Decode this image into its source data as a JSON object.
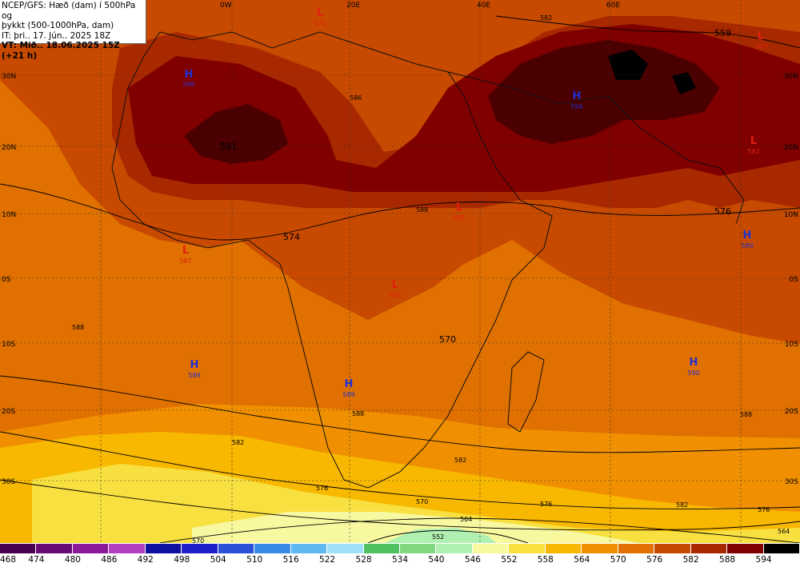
{
  "header": {
    "line1": "NCEP/GFS: Hæð (dam) í 500hPa og",
    "line2": "þykkt (500-1000hPa, dam)",
    "line3": "IT: þri.. 17. Jún.. 2025 18Z",
    "line4": "VT: Mið.. 18.06.2025 15Z (+21 h)"
  },
  "lon_labels": [
    "0W",
    "20E",
    "40E",
    "60E"
  ],
  "lat_labels": [
    "30N",
    "20N",
    "10N",
    "0S",
    "10S",
    "20S",
    "30S"
  ],
  "contour_labels": [
    "591",
    "574",
    "570",
    "576",
    "559",
    "582",
    "588",
    "576",
    "570",
    "564",
    "552",
    "582",
    "588",
    "588",
    "576",
    "570",
    "582",
    "576",
    "564",
    "582",
    "588",
    "586"
  ],
  "pressure_centers": [
    {
      "type": "H",
      "value": "586",
      "color": "#2030d0"
    },
    {
      "type": "L",
      "value": "574",
      "color": "#e02010"
    },
    {
      "type": "L",
      "value": "587",
      "color": "#e02010"
    },
    {
      "type": "H",
      "value": "594",
      "color": "#2030d0"
    },
    {
      "type": "L",
      "value": "583",
      "color": "#e02010"
    },
    {
      "type": "L",
      "value": "582",
      "color": "#e02010"
    },
    {
      "type": "L",
      "value": "585",
      "color": "#e02010"
    },
    {
      "type": "L",
      "value": "585",
      "color": "#e02010"
    },
    {
      "type": "H",
      "value": "589",
      "color": "#2030d0"
    },
    {
      "type": "H",
      "value": "589",
      "color": "#2030d0"
    },
    {
      "type": "H",
      "value": "589",
      "color": "#2030d0"
    },
    {
      "type": "H",
      "value": "590",
      "color": "#2030d0"
    }
  ],
  "legend": {
    "values": [
      "468",
      "474",
      "480",
      "486",
      "492",
      "498",
      "504",
      "510",
      "516",
      "522",
      "528",
      "534",
      "540",
      "546",
      "552",
      "558",
      "564",
      "570",
      "576",
      "582",
      "588",
      "594"
    ],
    "colors": [
      "#4a0050",
      "#6a0a78",
      "#8a1a9a",
      "#b040c0",
      "#1010a0",
      "#2020c8",
      "#2a50d8",
      "#3a8ae8",
      "#60b8f0",
      "#a0e0f8",
      "#50c060",
      "#80d880",
      "#b0f0b0",
      "#f8f8a0",
      "#f8e040",
      "#f8b800",
      "#f09000",
      "#e07000",
      "#c84a00",
      "#a82800",
      "#800000",
      "#000000"
    ]
  }
}
